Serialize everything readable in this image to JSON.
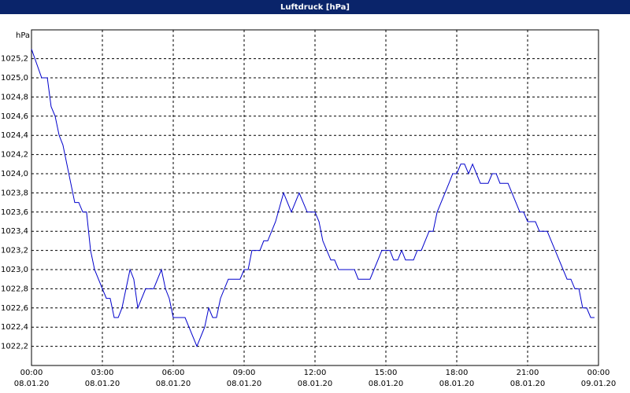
{
  "chart_data": {
    "type": "line",
    "title": "Luftdruck [hPa]",
    "y_unit": "hPa",
    "color": "#0000cc",
    "grid": true,
    "xlim": [
      0,
      24
    ],
    "ylim": [
      1022.0,
      1025.5
    ],
    "xticks": [
      {
        "value": 0,
        "label": "00:00"
      },
      {
        "value": 3,
        "label": "03:00"
      },
      {
        "value": 6,
        "label": "06:00"
      },
      {
        "value": 9,
        "label": "09:00"
      },
      {
        "value": 12,
        "label": "12:00"
      },
      {
        "value": 15,
        "label": "15:00"
      },
      {
        "value": 18,
        "label": "18:00"
      },
      {
        "value": 21,
        "label": "21:00"
      },
      {
        "value": 24,
        "label": "00:00"
      }
    ],
    "xtick_dates": [
      "08.01.20",
      "08.01.20",
      "08.01.20",
      "08.01.20",
      "08.01.20",
      "08.01.20",
      "08.01.20",
      "08.01.20",
      "09.01.20"
    ],
    "yticks": [
      {
        "value": 1022.2,
        "label": "1022,2"
      },
      {
        "value": 1022.4,
        "label": "1022,4"
      },
      {
        "value": 1022.6,
        "label": "1022,6"
      },
      {
        "value": 1022.8,
        "label": "1022,8"
      },
      {
        "value": 1023.0,
        "label": "1023,0"
      },
      {
        "value": 1023.2,
        "label": "1023,2"
      },
      {
        "value": 1023.4,
        "label": "1023,4"
      },
      {
        "value": 1023.6,
        "label": "1023,6"
      },
      {
        "value": 1023.8,
        "label": "1023,8"
      },
      {
        "value": 1024.0,
        "label": "1024,0"
      },
      {
        "value": 1024.2,
        "label": "1024,2"
      },
      {
        "value": 1024.4,
        "label": "1024,4"
      },
      {
        "value": 1024.6,
        "label": "1024,6"
      },
      {
        "value": 1024.8,
        "label": "1024,8"
      },
      {
        "value": 1025.0,
        "label": "1025,0"
      },
      {
        "value": 1025.2,
        "label": "1025,2"
      }
    ],
    "x": [
      0,
      0.43,
      0.67,
      0.83,
      1,
      1.17,
      1.33,
      1.83,
      2,
      2.17,
      2.33,
      2.5,
      2.67,
      3,
      3.17,
      3.33,
      3.5,
      3.67,
      3.83,
      4.17,
      4.33,
      4.5,
      4.83,
      5.17,
      5.5,
      5.67,
      5.83,
      6,
      6.5,
      7,
      7.33,
      7.5,
      7.67,
      7.83,
      8,
      8.33,
      8.83,
      9,
      9.17,
      9.33,
      9.67,
      9.83,
      10,
      10.33,
      10.67,
      11,
      11.33,
      11.67,
      12,
      12.17,
      12.33,
      12.5,
      12.67,
      12.83,
      13,
      13.67,
      13.83,
      14.33,
      14.83,
      15.17,
      15.33,
      15.5,
      15.67,
      15.83,
      16.17,
      16.33,
      16.5,
      16.83,
      17,
      17.17,
      17.67,
      17.83,
      18,
      18.17,
      18.33,
      18.5,
      18.67,
      19,
      19.33,
      19.5,
      19.67,
      19.83,
      20.17,
      20.67,
      20.83,
      21,
      21.33,
      21.5,
      21.83,
      22.67,
      22.83,
      23,
      23.17,
      23.33,
      23.5,
      23.67,
      23.83
    ],
    "values": [
      1025.3,
      1025.0,
      1025.0,
      1024.7,
      1024.6,
      1024.4,
      1024.3,
      1023.7,
      1023.7,
      1023.6,
      1023.6,
      1023.2,
      1023.0,
      1022.8,
      1022.7,
      1022.7,
      1022.5,
      1022.5,
      1022.6,
      1023.0,
      1022.9,
      1022.6,
      1022.8,
      1022.8,
      1023.0,
      1022.8,
      1022.7,
      1022.5,
      1022.5,
      1022.2,
      1022.4,
      1022.6,
      1022.5,
      1022.5,
      1022.7,
      1022.9,
      1022.9,
      1023.0,
      1023.0,
      1023.2,
      1023.2,
      1023.3,
      1023.3,
      1023.5,
      1023.8,
      1023.6,
      1023.8,
      1023.6,
      1023.6,
      1023.5,
      1023.3,
      1023.2,
      1023.1,
      1023.1,
      1023.0,
      1023.0,
      1022.9,
      1022.9,
      1023.2,
      1023.2,
      1023.1,
      1023.1,
      1023.2,
      1023.1,
      1023.1,
      1023.2,
      1023.2,
      1023.4,
      1023.4,
      1023.6,
      1023.9,
      1024.0,
      1024.0,
      1024.1,
      1024.1,
      1024.0,
      1024.1,
      1023.9,
      1023.9,
      1024.0,
      1024.0,
      1023.9,
      1023.9,
      1023.6,
      1023.6,
      1023.5,
      1023.5,
      1023.4,
      1023.4,
      1022.9,
      1022.9,
      1022.8,
      1022.8,
      1022.6,
      1022.6,
      1022.5,
      1022.5
    ]
  }
}
